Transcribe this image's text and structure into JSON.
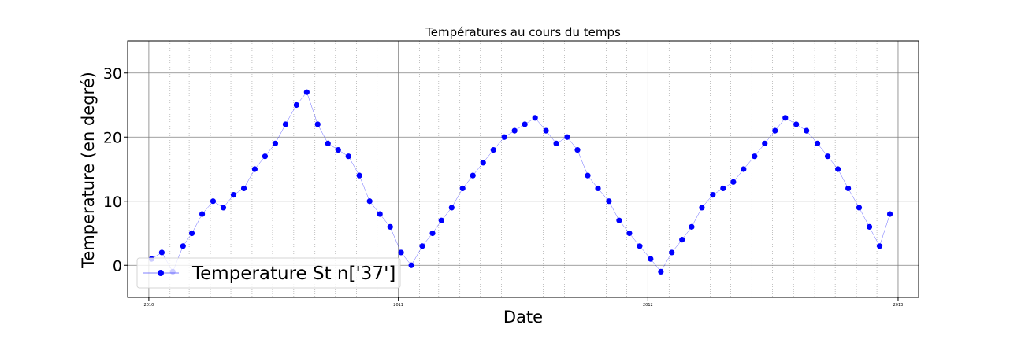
{
  "chart_data": {
    "type": "scatter",
    "title": "Températures au cours du temps",
    "xlabel": "Date",
    "ylabel": "Temperature (en degré)",
    "x_start": "2009-12-01",
    "x_end": "2013-01-31",
    "xlim": [
      "2009-12-01",
      "2013-01-31"
    ],
    "ylim": [
      -5,
      35
    ],
    "x_ticks": [
      {
        "date": "2010-01-01",
        "label": "2010"
      },
      {
        "date": "2011-01-01",
        "label": "2011"
      },
      {
        "date": "2012-01-01",
        "label": "2012"
      },
      {
        "date": "2013-01-01",
        "label": "2013"
      }
    ],
    "y_ticks": [
      0,
      10,
      20,
      30
    ],
    "grid": "on (major solid, minor dotted monthly)",
    "legend": {
      "position": "lower-left",
      "entries": [
        "Temperature St n['37']"
      ]
    },
    "series": [
      {
        "name": "Temperature St n['37']",
        "color": "#0000ff",
        "marker": "circle with line",
        "x": [
          "2010-01-05",
          "2010-01-20",
          "2010-02-05",
          "2010-02-20",
          "2010-03-05",
          "2010-03-20",
          "2010-04-05",
          "2010-04-20",
          "2010-05-05",
          "2010-05-20",
          "2010-06-05",
          "2010-06-20",
          "2010-07-05",
          "2010-07-20",
          "2010-08-05",
          "2010-08-20",
          "2010-09-05",
          "2010-09-20",
          "2010-10-05",
          "2010-10-20",
          "2010-11-05",
          "2010-11-20",
          "2010-12-05",
          "2010-12-20",
          "2011-01-05",
          "2011-01-20",
          "2011-02-05",
          "2011-02-20",
          "2011-03-05",
          "2011-03-20",
          "2011-04-05",
          "2011-04-20",
          "2011-05-05",
          "2011-05-20",
          "2011-06-05",
          "2011-06-20",
          "2011-07-05",
          "2011-07-20",
          "2011-08-05",
          "2011-08-20",
          "2011-09-05",
          "2011-09-20",
          "2011-10-05",
          "2011-10-20",
          "2011-11-05",
          "2011-11-20",
          "2011-12-05",
          "2011-12-20",
          "2012-01-05",
          "2012-01-20",
          "2012-02-05",
          "2012-02-20",
          "2012-03-05",
          "2012-03-20",
          "2012-04-05",
          "2012-04-20",
          "2012-05-05",
          "2012-05-20",
          "2012-06-05",
          "2012-06-20",
          "2012-07-05",
          "2012-07-20",
          "2012-08-05",
          "2012-08-20",
          "2012-09-05",
          "2012-09-20",
          "2012-10-05",
          "2012-10-20",
          "2012-11-05",
          "2012-11-20",
          "2012-12-05",
          "2012-12-20"
        ],
        "y": [
          1,
          2,
          -1,
          3,
          5,
          8,
          10,
          9,
          11,
          12,
          15,
          17,
          19,
          22,
          25,
          27,
          22,
          19,
          18,
          17,
          14,
          10,
          8,
          6,
          2,
          0,
          3,
          5,
          7,
          9,
          12,
          14,
          16,
          18,
          20,
          21,
          22,
          23,
          21,
          19,
          20,
          18,
          14,
          12,
          10,
          7,
          5,
          3,
          1,
          -1,
          2,
          4,
          6,
          9,
          11,
          12,
          13,
          15,
          17,
          19,
          21,
          23,
          22,
          21,
          19,
          17,
          15,
          12,
          9,
          6,
          3,
          8
        ]
      }
    ]
  }
}
